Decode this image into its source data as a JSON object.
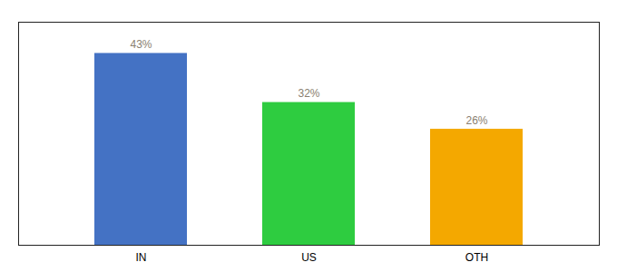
{
  "chart_data": {
    "type": "bar",
    "categories": [
      "IN",
      "US",
      "OTH"
    ],
    "values": [
      43,
      32,
      26
    ],
    "value_labels": [
      "43%",
      "32%",
      "26%"
    ],
    "data_labels": true,
    "colors": [
      "#4472C4",
      "#2ECC40",
      "#F4A800"
    ],
    "ylim": [
      0,
      50
    ],
    "tick_labels": "x",
    "grid": false
  }
}
